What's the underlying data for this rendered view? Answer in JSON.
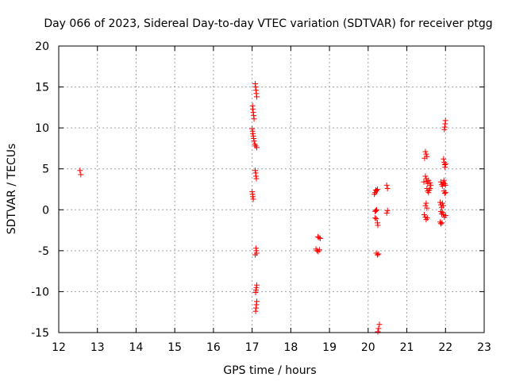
{
  "chart_data": {
    "type": "scatter",
    "title": "Day 066 of 2023, Sidereal Day-to-day VTEC variation (SDTVAR) for receiver ptgg",
    "xlabel": "GPS time / hours",
    "ylabel": "SDTVAR / TECUs",
    "xlim": [
      12,
      23
    ],
    "ylim": [
      -15,
      20
    ],
    "xticks": [
      "12",
      "13",
      "14",
      "15",
      "16",
      "17",
      "18",
      "19",
      "20",
      "21",
      "22",
      "23"
    ],
    "yticks": [
      "-15",
      "-10",
      "-5",
      "0",
      "5",
      "10",
      "15",
      "20"
    ],
    "grid": true,
    "marker": "+",
    "color": "#ff0000",
    "series": [
      {
        "name": "SDTVAR",
        "points": [
          [
            12.55,
            4.8
          ],
          [
            12.57,
            4.3
          ],
          [
            17.08,
            15.4
          ],
          [
            17.09,
            15.0
          ],
          [
            17.1,
            14.6
          ],
          [
            17.11,
            14.2
          ],
          [
            17.12,
            13.8
          ],
          [
            17.01,
            12.7
          ],
          [
            17.02,
            12.3
          ],
          [
            17.03,
            11.9
          ],
          [
            17.04,
            11.5
          ],
          [
            17.05,
            11.1
          ],
          [
            17.0,
            9.9
          ],
          [
            17.01,
            9.6
          ],
          [
            17.02,
            9.3
          ],
          [
            17.03,
            9.0
          ],
          [
            17.04,
            8.7
          ],
          [
            17.05,
            8.4
          ],
          [
            17.07,
            8.0
          ],
          [
            17.09,
            7.8
          ],
          [
            17.12,
            7.6
          ],
          [
            17.08,
            4.8
          ],
          [
            17.09,
            4.5
          ],
          [
            17.1,
            4.1
          ],
          [
            17.11,
            3.8
          ],
          [
            17.0,
            2.2
          ],
          [
            17.01,
            1.9
          ],
          [
            17.02,
            1.6
          ],
          [
            17.03,
            1.3
          ],
          [
            17.1,
            -4.7
          ],
          [
            17.11,
            -5.0
          ],
          [
            17.12,
            -5.3
          ],
          [
            17.08,
            -5.5
          ],
          [
            17.12,
            -9.2
          ],
          [
            17.11,
            -9.5
          ],
          [
            17.1,
            -9.8
          ],
          [
            17.09,
            -10.1
          ],
          [
            17.12,
            -11.2
          ],
          [
            17.11,
            -11.6
          ],
          [
            17.1,
            -12.0
          ],
          [
            17.09,
            -12.4
          ],
          [
            18.7,
            -3.3
          ],
          [
            18.73,
            -3.4
          ],
          [
            18.76,
            -3.5
          ],
          [
            18.65,
            -4.8
          ],
          [
            18.68,
            -5.0
          ],
          [
            18.71,
            -5.1
          ],
          [
            18.74,
            -4.9
          ],
          [
            20.2,
            2.4
          ],
          [
            20.18,
            2.1
          ],
          [
            20.22,
            2.3
          ],
          [
            20.24,
            2.5
          ],
          [
            20.16,
            1.9
          ],
          [
            20.2,
            -0.1
          ],
          [
            20.18,
            -0.2
          ],
          [
            20.22,
            0.0
          ],
          [
            20.18,
            -1.0
          ],
          [
            20.21,
            -1.1
          ],
          [
            20.24,
            -1.6
          ],
          [
            20.25,
            -1.9
          ],
          [
            20.21,
            -5.3
          ],
          [
            20.24,
            -5.5
          ],
          [
            20.27,
            -5.4
          ],
          [
            20.29,
            -14.0
          ],
          [
            20.27,
            -14.5
          ],
          [
            20.25,
            -14.9
          ],
          [
            20.48,
            3.0
          ],
          [
            20.5,
            2.6
          ],
          [
            20.5,
            -0.1
          ],
          [
            20.48,
            -0.4
          ],
          [
            21.48,
            7.1
          ],
          [
            21.5,
            6.8
          ],
          [
            21.52,
            6.5
          ],
          [
            21.46,
            6.3
          ],
          [
            21.48,
            4.1
          ],
          [
            21.5,
            3.8
          ],
          [
            21.52,
            3.5
          ],
          [
            21.54,
            3.2
          ],
          [
            21.56,
            3.6
          ],
          [
            21.44,
            3.4
          ],
          [
            21.6,
            3.3
          ],
          [
            21.62,
            3.0
          ],
          [
            21.52,
            2.6
          ],
          [
            21.54,
            2.3
          ],
          [
            21.56,
            2.1
          ],
          [
            21.58,
            2.4
          ],
          [
            21.6,
            2.6
          ],
          [
            21.5,
            0.8
          ],
          [
            21.48,
            0.5
          ],
          [
            21.52,
            0.2
          ],
          [
            21.45,
            -0.6
          ],
          [
            21.48,
            -0.9
          ],
          [
            21.5,
            -1.2
          ],
          [
            21.53,
            -1.0
          ],
          [
            22.0,
            10.9
          ],
          [
            21.99,
            10.5
          ],
          [
            21.98,
            10.1
          ],
          [
            21.97,
            9.8
          ],
          [
            21.95,
            6.2
          ],
          [
            21.97,
            5.8
          ],
          [
            21.98,
            5.5
          ],
          [
            21.99,
            5.2
          ],
          [
            22.0,
            5.6
          ],
          [
            21.88,
            3.4
          ],
          [
            21.9,
            3.1
          ],
          [
            21.92,
            2.9
          ],
          [
            21.94,
            3.3
          ],
          [
            21.96,
            3.6
          ],
          [
            21.98,
            3.2
          ],
          [
            22.0,
            3.0
          ],
          [
            21.96,
            2.3
          ],
          [
            21.98,
            2.0
          ],
          [
            22.0,
            2.1
          ],
          [
            21.86,
            0.9
          ],
          [
            21.88,
            0.6
          ],
          [
            21.9,
            0.3
          ],
          [
            21.92,
            0.8
          ],
          [
            21.94,
            0.5
          ],
          [
            21.88,
            -0.2
          ],
          [
            21.9,
            -0.5
          ],
          [
            21.92,
            -0.3
          ],
          [
            21.95,
            -0.6
          ],
          [
            21.97,
            -0.9
          ],
          [
            22.0,
            -0.7
          ],
          [
            21.86,
            -1.5
          ],
          [
            21.88,
            -1.7
          ],
          [
            21.91,
            -1.6
          ]
        ]
      }
    ]
  }
}
